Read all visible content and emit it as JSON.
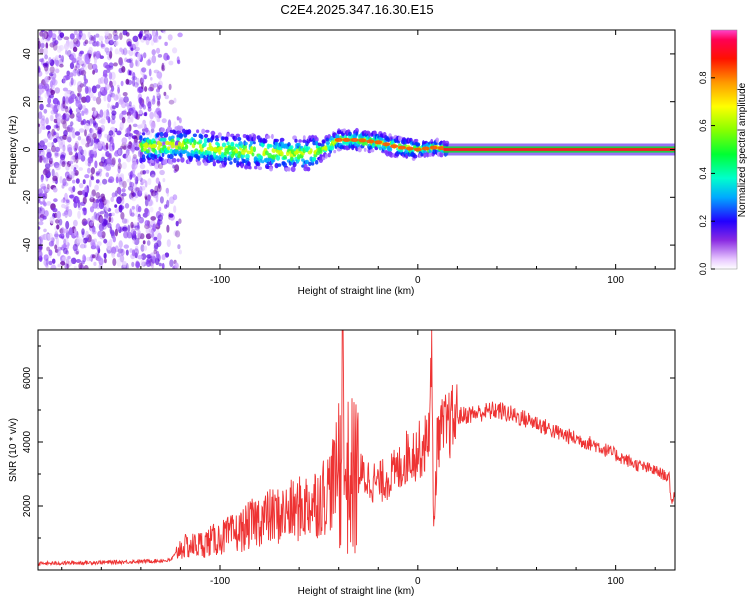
{
  "title": "C2E4.2025.347.16.30.E15",
  "colors": {
    "snr_line": "#ee3333",
    "frame": "#000000",
    "track_core": "#ee2222",
    "track_edge": "#22cc44"
  },
  "chart_data": [
    {
      "type": "heatmap",
      "xlabel": "Height of straight line (km)",
      "ylabel": "Frequency (Hz)",
      "xlim": [
        -192,
        130
      ],
      "ylim": [
        -50,
        50
      ],
      "xticks": [
        -100,
        0,
        100
      ],
      "yticks": [
        -40,
        -20,
        0,
        20,
        40
      ],
      "xtick_labels": [
        "-100",
        "0",
        "100"
      ],
      "ytick_labels": [
        "-40",
        "-20",
        "0",
        "20",
        "40"
      ],
      "colorbar": {
        "label": "Normalized spectral amplitude",
        "range": [
          0,
          1
        ],
        "ticks": [
          "0.0",
          "0.2",
          "0.4",
          "0.6",
          "0.8"
        ],
        "colormap": [
          "#ffffff",
          "#cc88ff",
          "#7a00ff",
          "#0000ff",
          "#00ccff",
          "#00ff88",
          "#33ff00",
          "#ccff00",
          "#ffcc00",
          "#ff5500",
          "#ff0022",
          "#ff33aa"
        ]
      },
      "track": {
        "x": [
          -140,
          -120,
          -100,
          -80,
          -60,
          -50,
          -40,
          -30,
          -20,
          -10,
          0,
          10,
          15,
          50,
          90,
          130
        ],
        "frequency": [
          1,
          2,
          0,
          -1,
          -2,
          -1,
          4,
          4,
          3,
          1,
          0,
          1,
          0,
          0,
          0,
          0
        ]
      }
    },
    {
      "type": "line",
      "xlabel": "Height of straight line (km)",
      "ylabel": "SNR (10 * v/v)",
      "xlim": [
        -192,
        130
      ],
      "ylim": [
        0,
        7500
      ],
      "xticks": [
        -100,
        0,
        100
      ],
      "yticks": [
        2000,
        4000,
        6000
      ],
      "xtick_labels": [
        "-100",
        "0",
        "100"
      ],
      "ytick_labels": [
        "2000",
        "4000",
        "6000"
      ],
      "series": [
        {
          "x": [
            -192,
            -150,
            -125,
            -120,
            -110,
            -100,
            -90,
            -80,
            -70,
            -60,
            -50,
            -45,
            -38,
            -35,
            -30,
            -20,
            -10,
            -5,
            0,
            5,
            7,
            8,
            10,
            20,
            30,
            40,
            50,
            60,
            70,
            80,
            90,
            100,
            110,
            120,
            127,
            128,
            130
          ],
          "values": [
            200,
            250,
            300,
            700,
            800,
            1000,
            1200,
            1600,
            1700,
            1900,
            2200,
            2500,
            3400,
            2800,
            3000,
            2700,
            3100,
            3600,
            3700,
            4000,
            6200,
            1200,
            4200,
            4800,
            4900,
            5000,
            4800,
            4600,
            4300,
            4100,
            3900,
            3600,
            3300,
            3100,
            2900,
            2100,
            2400
          ]
        }
      ]
    }
  ]
}
